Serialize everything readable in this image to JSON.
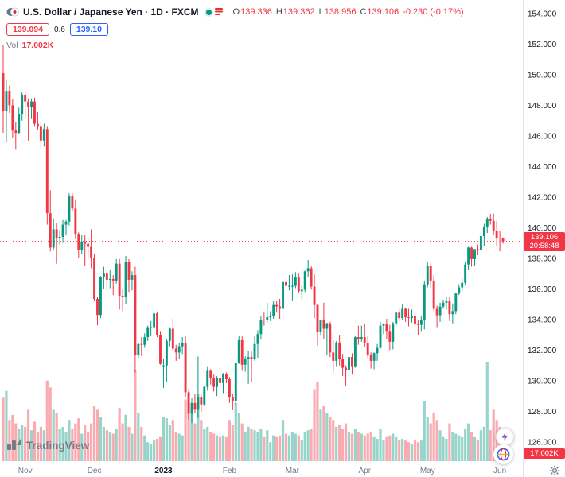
{
  "header": {
    "symbol_title": "U.S. Dollar / Japanese Yen · 1D · FXCM",
    "ohlc": {
      "o_label": "O",
      "o": "139.336",
      "h_label": "H",
      "h": "139.362",
      "l_label": "L",
      "l": "138.956",
      "c_label": "C",
      "c": "139.106",
      "change": "-0.230 (-0.17%)"
    },
    "sell_price": "139.094",
    "spread": "0.6",
    "buy_price": "139.10",
    "vol_label": "Vol",
    "vol_value": "17.002K"
  },
  "price_label": {
    "price": "139.106",
    "countdown": "20:58:48"
  },
  "volume_label": "17.002K",
  "footer": {
    "brand": "TradingView"
  },
  "colors": {
    "up": "#089981",
    "down": "#f23645",
    "buy": "#2962ff",
    "sell": "#f23645",
    "axis_text": "#131722",
    "muted": "#787b86",
    "border": "#e0e3eb"
  },
  "icons": {
    "pair_logo": "usdjpy-pair",
    "market_status": "open-dot",
    "exchange": "fxcm-stripes",
    "lightning": "lightning-bolt",
    "globe": "globe",
    "gear": "settings-gear"
  },
  "chart_data": {
    "type": "candlestick",
    "title": "U.S. Dollar / Japanese Yen",
    "interval": "1D",
    "exchange": "FXCM",
    "current_price": 139.106,
    "y_axis": {
      "min_visible": 124.75,
      "max_visible": 154.88,
      "tick_step": 2,
      "ticks": [
        {
          "v": 154,
          "label": "154.000"
        },
        {
          "v": 152,
          "label": "152.000"
        },
        {
          "v": 150,
          "label": "150.000"
        },
        {
          "v": 148,
          "label": "148.000"
        },
        {
          "v": 146,
          "label": "146.000"
        },
        {
          "v": 144,
          "label": "144.000"
        },
        {
          "v": 142,
          "label": "142.000"
        },
        {
          "v": 140,
          "label": "140.000"
        },
        {
          "v": 138,
          "label": "138.000"
        },
        {
          "v": 136,
          "label": "136.000"
        },
        {
          "v": 134,
          "label": "134.000"
        },
        {
          "v": 132,
          "label": "132.000"
        },
        {
          "v": 130,
          "label": "130.000"
        },
        {
          "v": 128,
          "label": "128.000"
        },
        {
          "v": 126,
          "label": "126.000"
        }
      ]
    },
    "x_axis": {
      "labels": [
        {
          "label": "Nov",
          "i": 7
        },
        {
          "label": "Dec",
          "i": 29
        },
        {
          "label": "2023",
          "i": 51,
          "strong": true
        },
        {
          "label": "Feb",
          "i": 72
        },
        {
          "label": "Mar",
          "i": 92
        },
        {
          "label": "Apr",
          "i": 115
        },
        {
          "label": "May",
          "i": 135
        },
        {
          "label": "Jun",
          "i": 158
        }
      ]
    },
    "volume_unit": "K",
    "candles": [
      [
        150.1,
        151.95,
        146.2,
        147.65,
        185
      ],
      [
        147.65,
        149.7,
        145.56,
        148.9,
        205
      ],
      [
        148.9,
        149.3,
        147.5,
        148.0,
        120
      ],
      [
        148.0,
        148.4,
        145.9,
        146.35,
        135
      ],
      [
        146.35,
        146.9,
        145.1,
        146.2,
        110
      ],
      [
        146.2,
        147.85,
        146.1,
        147.45,
        95
      ],
      [
        147.45,
        148.85,
        147.0,
        148.7,
        105
      ],
      [
        148.7,
        148.9,
        147.1,
        148.25,
        100
      ],
      [
        148.25,
        148.45,
        145.7,
        147.9,
        150
      ],
      [
        147.9,
        148.45,
        147.1,
        148.25,
        90
      ],
      [
        148.25,
        148.5,
        146.6,
        146.8,
        115
      ],
      [
        146.8,
        147.55,
        146.4,
        146.6,
        85
      ],
      [
        146.6,
        146.9,
        145.15,
        145.7,
        100
      ],
      [
        145.7,
        146.8,
        145.3,
        146.45,
        90
      ],
      [
        146.45,
        146.6,
        140.2,
        140.95,
        235
      ],
      [
        140.95,
        142.45,
        138.45,
        138.7,
        215
      ],
      [
        138.7,
        140.6,
        138.55,
        139.9,
        150
      ],
      [
        139.9,
        140.3,
        137.65,
        139.3,
        140
      ],
      [
        139.3,
        139.85,
        138.9,
        139.4,
        95
      ],
      [
        139.4,
        140.5,
        139.0,
        140.2,
        100
      ],
      [
        140.2,
        140.5,
        139.5,
        140.4,
        85
      ],
      [
        140.4,
        142.25,
        140.15,
        142.1,
        120
      ],
      [
        142.1,
        142.25,
        141.05,
        141.25,
        95
      ],
      [
        141.25,
        141.85,
        139.25,
        139.6,
        110
      ],
      [
        139.6,
        139.7,
        138.05,
        138.55,
        125
      ],
      [
        138.55,
        139.5,
        138.3,
        139.1,
        80
      ],
      [
        139.1,
        139.5,
        137.5,
        138.95,
        105
      ],
      [
        138.95,
        139.35,
        138.0,
        138.75,
        85
      ],
      [
        138.75,
        139.9,
        137.35,
        138.05,
        110
      ],
      [
        138.05,
        138.3,
        135.2,
        135.35,
        160
      ],
      [
        135.35,
        135.5,
        133.62,
        134.3,
        150
      ],
      [
        134.3,
        136.85,
        134.1,
        136.75,
        130
      ],
      [
        136.75,
        137.45,
        136.0,
        137.0,
        100
      ],
      [
        137.0,
        137.3,
        135.95,
        136.6,
        90
      ],
      [
        136.6,
        137.25,
        136.05,
        136.65,
        85
      ],
      [
        136.65,
        136.9,
        135.6,
        136.55,
        80
      ],
      [
        136.55,
        137.95,
        136.35,
        137.65,
        95
      ],
      [
        137.65,
        137.95,
        134.65,
        135.55,
        155
      ],
      [
        135.55,
        135.95,
        134.55,
        135.45,
        110
      ],
      [
        135.45,
        138.15,
        135.0,
        137.75,
        135
      ],
      [
        137.75,
        137.95,
        135.8,
        136.6,
        100
      ],
      [
        136.6,
        137.15,
        135.9,
        136.9,
        80
      ],
      [
        136.9,
        137.45,
        130.55,
        131.7,
        265
      ],
      [
        131.7,
        132.45,
        131.5,
        132.4,
        140
      ],
      [
        132.4,
        132.85,
        131.6,
        132.35,
        100
      ],
      [
        132.35,
        133.1,
        132.15,
        132.85,
        75
      ],
      [
        132.85,
        133.6,
        132.6,
        133.5,
        55
      ],
      [
        133.5,
        133.9,
        132.9,
        133.5,
        50
      ],
      [
        133.5,
        134.5,
        133.4,
        134.4,
        60
      ],
      [
        134.4,
        134.5,
        132.85,
        133.0,
        65
      ],
      [
        133.0,
        133.25,
        131.05,
        131.1,
        70
      ],
      [
        130.9,
        131.4,
        129.52,
        131.0,
        130
      ],
      [
        131.0,
        132.7,
        129.9,
        132.6,
        125
      ],
      [
        132.6,
        133.5,
        132.25,
        133.4,
        105
      ],
      [
        133.4,
        134.05,
        131.95,
        132.1,
        120
      ],
      [
        132.1,
        132.35,
        131.3,
        131.85,
        85
      ],
      [
        131.85,
        132.5,
        131.4,
        132.25,
        80
      ],
      [
        132.25,
        132.85,
        131.75,
        132.45,
        75
      ],
      [
        132.45,
        132.9,
        128.9,
        129.25,
        180
      ],
      [
        129.25,
        129.45,
        127.46,
        127.85,
        170
      ],
      [
        127.85,
        128.85,
        127.23,
        128.55,
        140
      ],
      [
        128.55,
        129.15,
        127.9,
        128.1,
        110
      ],
      [
        128.1,
        131.58,
        127.57,
        128.9,
        195
      ],
      [
        128.9,
        129.1,
        127.95,
        128.45,
        120
      ],
      [
        128.45,
        129.65,
        128.35,
        129.6,
        95
      ],
      [
        129.6,
        130.9,
        129.35,
        130.65,
        100
      ],
      [
        130.65,
        130.75,
        129.75,
        130.15,
        85
      ],
      [
        130.15,
        130.4,
        129.3,
        129.6,
        80
      ],
      [
        129.6,
        130.3,
        129.0,
        130.2,
        75
      ],
      [
        130.2,
        130.6,
        129.4,
        129.85,
        70
      ],
      [
        129.85,
        130.5,
        129.2,
        130.45,
        75
      ],
      [
        130.45,
        130.55,
        129.85,
        130.1,
        70
      ],
      [
        130.1,
        130.25,
        128.55,
        128.95,
        120
      ],
      [
        128.95,
        129.15,
        128.08,
        128.7,
        105
      ],
      [
        128.7,
        131.2,
        128.35,
        131.18,
        170
      ],
      [
        131.18,
        132.9,
        131.1,
        132.65,
        140
      ],
      [
        132.65,
        132.9,
        130.65,
        131.05,
        110
      ],
      [
        131.05,
        131.6,
        130.6,
        131.4,
        85
      ],
      [
        131.4,
        131.95,
        129.8,
        131.55,
        100
      ],
      [
        131.55,
        131.9,
        129.88,
        131.4,
        95
      ],
      [
        131.4,
        132.9,
        131.3,
        132.4,
        90
      ],
      [
        132.4,
        133.3,
        131.5,
        133.05,
        85
      ],
      [
        133.05,
        134.2,
        132.7,
        134.0,
        95
      ],
      [
        134.0,
        134.45,
        133.6,
        133.95,
        70
      ],
      [
        133.95,
        135.1,
        133.8,
        134.15,
        90
      ],
      [
        134.15,
        134.55,
        133.9,
        134.25,
        55
      ],
      [
        134.25,
        135.2,
        134.05,
        134.95,
        75
      ],
      [
        134.95,
        135.25,
        134.45,
        134.85,
        70
      ],
      [
        134.85,
        135.35,
        134.05,
        134.7,
        75
      ],
      [
        134.7,
        136.5,
        133.9,
        136.45,
        120
      ],
      [
        136.45,
        136.55,
        135.7,
        136.2,
        80
      ],
      [
        136.2,
        136.9,
        135.9,
        136.2,
        75
      ],
      [
        136.2,
        136.95,
        135.25,
        136.2,
        85
      ],
      [
        136.2,
        137.1,
        136.05,
        136.75,
        80
      ],
      [
        136.75,
        137.0,
        135.75,
        135.85,
        75
      ],
      [
        135.85,
        136.2,
        135.35,
        135.95,
        60
      ],
      [
        135.95,
        137.2,
        135.8,
        137.15,
        85
      ],
      [
        137.15,
        137.9,
        136.8,
        137.35,
        90
      ],
      [
        137.35,
        137.5,
        135.95,
        136.15,
        95
      ],
      [
        136.15,
        136.95,
        134.1,
        134.95,
        210
      ],
      [
        134.95,
        135.0,
        132.3,
        133.2,
        230
      ],
      [
        133.2,
        134.0,
        132.95,
        134.0,
        150
      ],
      [
        134.0,
        135.1,
        132.7,
        133.4,
        160
      ],
      [
        133.4,
        133.8,
        131.7,
        133.75,
        140
      ],
      [
        133.75,
        133.85,
        131.55,
        131.85,
        130
      ],
      [
        131.85,
        132.65,
        130.55,
        131.3,
        120
      ],
      [
        131.3,
        132.6,
        130.9,
        132.5,
        100
      ],
      [
        132.5,
        133.0,
        131.0,
        131.45,
        105
      ],
      [
        131.45,
        131.75,
        130.3,
        130.85,
        95
      ],
      [
        130.85,
        131.0,
        129.64,
        130.7,
        110
      ],
      [
        130.7,
        131.75,
        130.55,
        131.55,
        85
      ],
      [
        131.55,
        131.8,
        130.4,
        130.9,
        80
      ],
      [
        130.9,
        132.9,
        130.85,
        132.85,
        95
      ],
      [
        132.85,
        133.6,
        132.35,
        132.7,
        85
      ],
      [
        132.7,
        133.6,
        132.55,
        132.85,
        80
      ],
      [
        132.85,
        133.75,
        132.2,
        132.45,
        75
      ],
      [
        132.45,
        132.9,
        131.5,
        131.7,
        80
      ],
      [
        131.7,
        131.85,
        130.8,
        131.3,
        85
      ],
      [
        131.3,
        131.85,
        130.75,
        131.8,
        70
      ],
      [
        131.8,
        132.4,
        131.3,
        132.15,
        65
      ],
      [
        132.15,
        133.85,
        132.1,
        133.6,
        95
      ],
      [
        133.6,
        133.75,
        133.05,
        133.7,
        60
      ],
      [
        133.7,
        134.05,
        132.75,
        133.25,
        70
      ],
      [
        133.25,
        133.65,
        132.0,
        132.55,
        75
      ],
      [
        132.55,
        133.85,
        132.05,
        133.75,
        80
      ],
      [
        133.75,
        134.5,
        133.55,
        134.45,
        70
      ],
      [
        134.45,
        134.7,
        133.9,
        134.1,
        60
      ],
      [
        134.1,
        135.0,
        133.95,
        134.7,
        65
      ],
      [
        134.7,
        134.75,
        133.85,
        134.15,
        60
      ],
      [
        134.15,
        134.7,
        133.55,
        134.1,
        55
      ],
      [
        134.1,
        134.65,
        133.8,
        134.25,
        50
      ],
      [
        134.25,
        134.45,
        133.35,
        133.7,
        60
      ],
      [
        133.7,
        133.95,
        133.0,
        133.65,
        55
      ],
      [
        133.65,
        134.2,
        133.25,
        134.0,
        60
      ],
      [
        134.0,
        136.55,
        133.35,
        136.3,
        175
      ],
      [
        136.3,
        137.75,
        136.1,
        137.5,
        130
      ],
      [
        137.5,
        137.7,
        136.05,
        136.55,
        110
      ],
      [
        136.55,
        136.9,
        134.55,
        134.7,
        140
      ],
      [
        134.7,
        134.9,
        133.5,
        134.28,
        120
      ],
      [
        134.28,
        135.1,
        133.85,
        134.85,
        90
      ],
      [
        134.85,
        135.3,
        134.7,
        135.1,
        70
      ],
      [
        135.1,
        135.45,
        134.65,
        135.2,
        65
      ],
      [
        135.2,
        135.45,
        133.9,
        134.35,
        110
      ],
      [
        134.35,
        135.05,
        133.75,
        134.55,
        85
      ],
      [
        134.55,
        135.75,
        134.35,
        135.7,
        80
      ],
      [
        135.7,
        136.3,
        135.6,
        136.1,
        75
      ],
      [
        136.1,
        136.7,
        135.85,
        136.4,
        70
      ],
      [
        136.4,
        137.75,
        136.25,
        137.6,
        95
      ],
      [
        137.6,
        138.75,
        137.25,
        138.7,
        110
      ],
      [
        138.7,
        138.75,
        137.45,
        137.95,
        85
      ],
      [
        137.95,
        138.6,
        137.5,
        138.6,
        70
      ],
      [
        138.6,
        138.9,
        138.2,
        138.55,
        60
      ],
      [
        138.55,
        139.7,
        138.45,
        139.45,
        90
      ],
      [
        139.45,
        140.25,
        138.8,
        140.05,
        100
      ],
      [
        140.05,
        140.7,
        139.65,
        140.6,
        290
      ],
      [
        140.6,
        140.9,
        140.2,
        140.45,
        90
      ],
      [
        140.45,
        140.93,
        139.55,
        139.8,
        150
      ],
      [
        139.8,
        140.45,
        138.76,
        139.35,
        120
      ],
      [
        139.35,
        139.8,
        138.45,
        139.336,
        100
      ],
      [
        139.336,
        139.362,
        138.956,
        139.106,
        17.002
      ]
    ]
  }
}
